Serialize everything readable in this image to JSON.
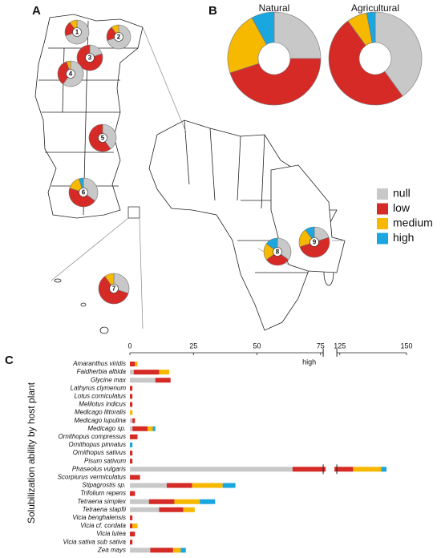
{
  "chart_data": [
    {
      "type": "pie-map",
      "panel": "A",
      "sites": [
        {
          "label": "1",
          "values": [
            70,
            20,
            10,
            0
          ]
        },
        {
          "label": "2",
          "values": [
            70,
            20,
            10,
            0
          ]
        },
        {
          "label": "3",
          "values": [
            20,
            80,
            0,
            0
          ]
        },
        {
          "label": "4",
          "values": [
            60,
            35,
            5,
            0
          ]
        },
        {
          "label": "5",
          "values": [
            40,
            60,
            0,
            0
          ]
        },
        {
          "label": "6",
          "values": [
            35,
            45,
            15,
            5
          ]
        },
        {
          "label": "7",
          "values": [
            30,
            60,
            10,
            0
          ]
        },
        {
          "label": "8",
          "values": [
            35,
            30,
            20,
            15
          ]
        },
        {
          "label": "9",
          "values": [
            20,
            50,
            20,
            10
          ]
        }
      ]
    },
    {
      "type": "donut",
      "panel": "B",
      "categories": [
        "null",
        "low",
        "medium",
        "high"
      ],
      "colors": [
        "#c8c8c8",
        "#d62a26",
        "#f7b800",
        "#1aa6df"
      ],
      "series": [
        {
          "name": "Natural",
          "values": [
            25,
            45,
            22,
            8
          ]
        },
        {
          "name": "Agricultural",
          "values": [
            40,
            50,
            7,
            3
          ]
        }
      ]
    },
    {
      "type": "stacked-bar-h",
      "panel": "C",
      "ylabel": "Solubilization ability by host plant",
      "annotation": "high",
      "categories": [
        "Amaranthus viridis",
        "Faidherbia albida",
        "Glycine max",
        "Lathyrus clymenum",
        "Lotus corniculatus",
        "Melilotus indicus",
        "Medicago littoralis",
        "Medicago lupulina",
        "Medicago sp.",
        "Ornithopus compressus",
        "Ornithopus pinnatus",
        "Ornithopus sativus",
        "Pisum sativum",
        "Phaseolus vulgaris",
        "Scorpiurus vermiculatus",
        "Stipagrostis sp.",
        "Trifolium repens",
        "Tetraena simplex",
        "Tetraena stapfii",
        "Vicia benghalensis",
        "Vicia cf. cordata",
        "Vicia lutea",
        "Vicia sativa sub sativa",
        "Zea mays"
      ],
      "series": [
        {
          "values": [
            0,
            1.5,
            10,
            0,
            0,
            0,
            0,
            1,
            1,
            0,
            0,
            0,
            0,
            64,
            0,
            14.5,
            0,
            7.5,
            11.5,
            0,
            0,
            0,
            0,
            8
          ]
        },
        {
          "values": [
            2,
            10,
            6,
            1,
            1,
            1,
            0,
            1,
            6,
            3,
            0,
            1,
            1,
            66,
            4,
            10,
            2,
            10,
            9.5,
            1,
            1,
            2,
            1,
            9
          ]
        },
        {
          "values": [
            1,
            4,
            0,
            0,
            0,
            0,
            1,
            0,
            2,
            0,
            0,
            0,
            0,
            10.5,
            0,
            12,
            0,
            10,
            4.5,
            0,
            2,
            0,
            0,
            3
          ]
        },
        {
          "values": [
            0,
            0,
            0,
            0,
            0,
            0,
            0,
            0,
            1,
            0,
            1,
            0,
            0,
            2,
            0,
            5,
            0,
            6,
            0,
            0,
            0,
            0,
            0,
            2
          ]
        }
      ],
      "xlim": [
        0,
        150
      ],
      "xbreak": [
        77,
        123
      ],
      "xticks": [
        0,
        25,
        50,
        75,
        125,
        150
      ]
    }
  ]
}
